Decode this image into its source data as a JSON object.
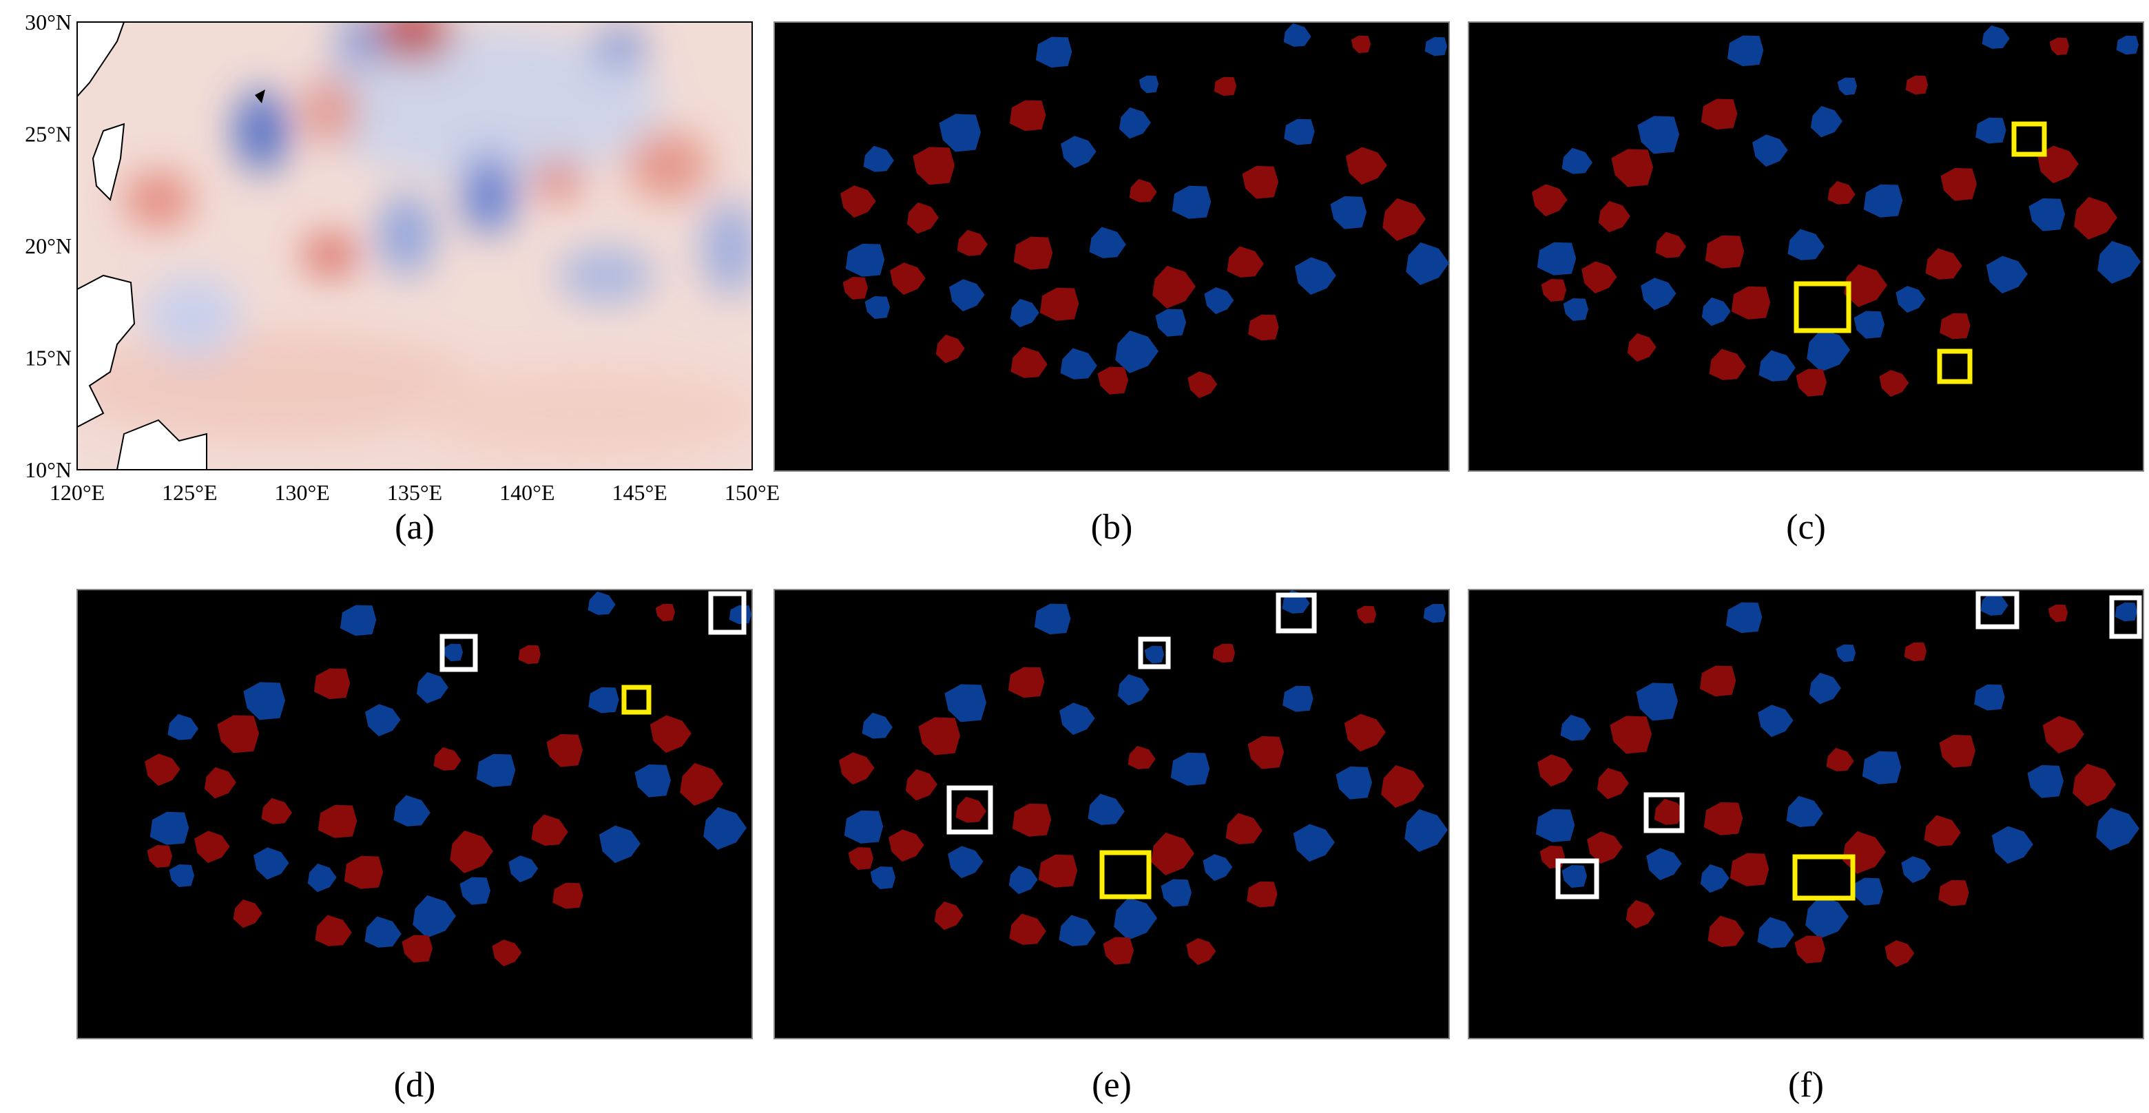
{
  "map": {
    "lat_labels": [
      "30°N",
      "25°N",
      "20°N",
      "15°N",
      "10°N"
    ],
    "lon_labels": [
      "120°E",
      "125°E",
      "130°E",
      "135°E",
      "140°E",
      "145°E",
      "150°E"
    ]
  },
  "panels": [
    {
      "label": "(a)"
    },
    {
      "label": "(b)"
    },
    {
      "label": "(c)"
    },
    {
      "label": "(d)"
    },
    {
      "label": "(e)"
    },
    {
      "label": "(f)"
    }
  ]
}
